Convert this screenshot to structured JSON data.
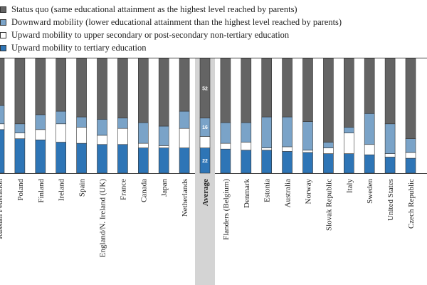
{
  "chart_data": {
    "type": "bar",
    "stacked": true,
    "highlight_category": "Average",
    "legend": [
      {
        "key": "status_quo",
        "label": "Status quo (same educational attainment as the highest level reached by parents)",
        "color": "#646464"
      },
      {
        "key": "downward",
        "label": "Downward mobility (lower educational attainment than the highest level reached by parents)",
        "color": "#7aa3c8"
      },
      {
        "key": "upward_upper_sec",
        "label": "Upward mobility to upper secondary or post-secondary non-tertiary education",
        "color": "#ffffff"
      },
      {
        "key": "upward_tertiary",
        "label": "Upward mobility to tertiary education",
        "color": "#2e75b6"
      }
    ],
    "categories": [
      "Russian Federation",
      "Poland",
      "Finland",
      "Ireland",
      "Spain",
      "England/N. Ireland (UK)",
      "France",
      "Canada",
      "Japan",
      "Netherlands",
      "Average",
      "Flanders (Belgium)",
      "Denmark",
      "Estonia",
      "Australia",
      "Norway",
      "Slovak Republic",
      "Italy",
      "Sweden",
      "United States",
      "Czech Republic"
    ],
    "series": [
      {
        "name": "Upward mobility to tertiary education",
        "key": "upward_tertiary",
        "values": [
          38,
          30,
          29,
          27,
          26,
          25,
          25,
          22,
          22,
          22,
          22,
          21,
          20,
          20,
          19,
          18,
          17,
          17,
          16,
          14,
          13
        ]
      },
      {
        "name": "Upward mobility to upper secondary or post-secondary non-tertiary education",
        "key": "upward_upper_sec",
        "values": [
          5,
          5,
          9,
          16,
          14,
          8,
          14,
          4,
          2,
          17,
          10,
          5,
          7,
          2,
          4,
          2,
          5,
          18,
          9,
          3,
          5
        ]
      },
      {
        "name": "Downward mobility (lower educational attainment than the highest level reached by parents)",
        "key": "downward",
        "values": [
          16,
          8,
          13,
          11,
          9,
          14,
          9,
          18,
          17,
          15,
          16,
          18,
          17,
          27,
          26,
          25,
          5,
          5,
          27,
          26,
          12
        ]
      },
      {
        "name": "Status quo (same educational attainment as the highest level reached by parents)",
        "key": "status_quo",
        "values": [
          41,
          57,
          49,
          46,
          51,
          53,
          52,
          56,
          59,
          46,
          52,
          56,
          56,
          51,
          51,
          55,
          73,
          60,
          48,
          57,
          70
        ]
      }
    ],
    "average_labels": [
      "52",
      "16",
      "10",
      "22"
    ],
    "ylim": [
      0,
      100
    ]
  }
}
